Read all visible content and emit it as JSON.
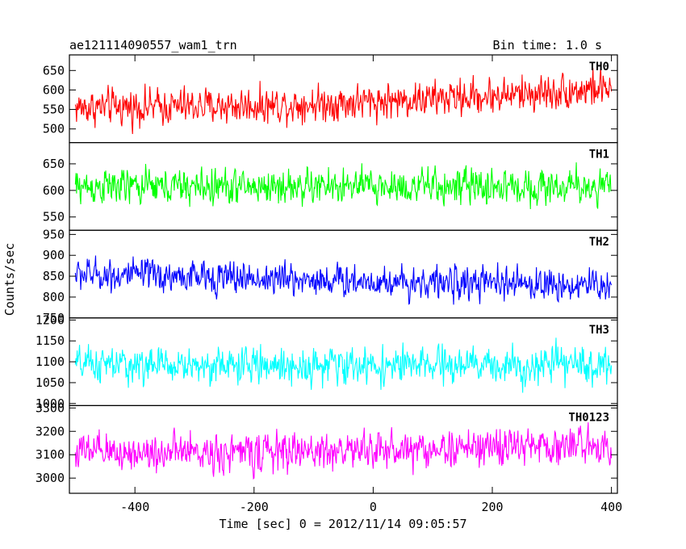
{
  "header": {
    "title_left": "ae121114090557_wam1_trn",
    "title_right": "Bin time: 1.0 s"
  },
  "axes": {
    "xlabel": "Time [sec] 0 = 2012/11/14 09:05:57",
    "ylabel": "Counts/sec"
  },
  "chart_data": {
    "type": "line",
    "bin_time_s": 1.0,
    "shared_x": {
      "range": [
        -510,
        410
      ],
      "ticks": [
        -400,
        -200,
        0,
        200,
        400
      ],
      "data_range": [
        -500,
        400
      ]
    },
    "panels": [
      {
        "name": "TH0",
        "color": "#ff0000",
        "ylim": [
          465,
          690
        ],
        "yticks": [
          500,
          550,
          600,
          650
        ],
        "trend": {
          "x": [
            -500,
            -200,
            0,
            200,
            400
          ],
          "y": [
            555,
            560,
            570,
            585,
            605
          ]
        },
        "amplitude": 45
      },
      {
        "name": "TH1",
        "color": "#00ff00",
        "ylim": [
          525,
          690
        ],
        "yticks": [
          550,
          600,
          650
        ],
        "trend": {
          "x": [
            -500,
            0,
            400
          ],
          "y": [
            607,
            607,
            607
          ]
        },
        "amplitude": 33
      },
      {
        "name": "TH2",
        "color": "#0000ff",
        "ylim": [
          750,
          960
        ],
        "yticks": [
          750,
          800,
          850,
          900,
          950
        ],
        "trend": {
          "x": [
            -500,
            -200,
            0,
            200,
            400
          ],
          "y": [
            855,
            845,
            838,
            832,
            828
          ]
        },
        "amplitude": 38
      },
      {
        "name": "TH3",
        "color": "#00ffff",
        "ylim": [
          995,
          1205
        ],
        "yticks": [
          1000,
          1050,
          1100,
          1150,
          1200
        ],
        "trend": {
          "x": [
            -500,
            0,
            400
          ],
          "y": [
            1092,
            1090,
            1092
          ]
        },
        "amplitude": 42
      },
      {
        "name": "TH0123",
        "color": "#ff00ff",
        "ylim": [
          2935,
          3310
        ],
        "yticks": [
          3000,
          3100,
          3200,
          3300
        ],
        "trend": {
          "x": [
            -500,
            -200,
            0,
            200,
            400
          ],
          "y": [
            3110,
            3110,
            3120,
            3130,
            3145
          ]
        },
        "amplitude": 80
      }
    ]
  }
}
